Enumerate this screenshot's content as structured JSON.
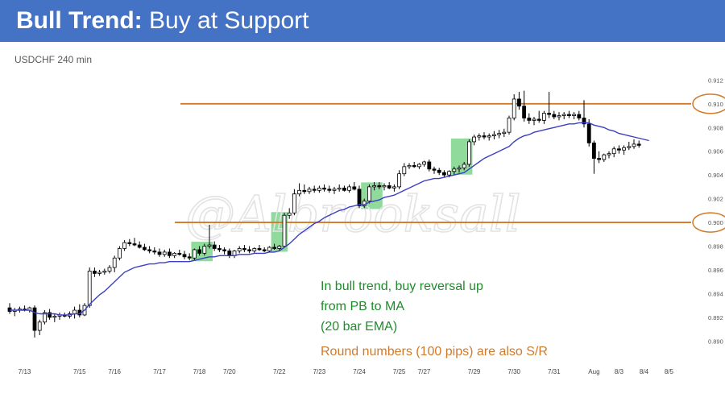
{
  "header": {
    "title_bold": "Bull Trend:",
    "title_rest": " Buy at Support",
    "background_color": "#4472c4"
  },
  "chart_label": "USDCHF 240 min",
  "annotations": {
    "green_lines": [
      "In bull trend, buy reversal up",
      "from PB to MA",
      "(20 bar EMA)"
    ],
    "orange_line": "Round numbers (100 pips) are also S/R",
    "green_color": "#1e8c2b",
    "orange_color": "#d07a2a"
  },
  "watermark": "@Albrooksall",
  "chart_data": {
    "type": "candlestick",
    "ylim": [
      0.8888,
      0.9125
    ],
    "y_ticks": [
      "0.912",
      "0.910",
      "0.908",
      "0.906",
      "0.904",
      "0.902",
      "0.900",
      "0.898",
      "0.896",
      "0.894",
      "0.892",
      "0.890"
    ],
    "y_tick_values": [
      0.912,
      0.91,
      0.908,
      0.906,
      0.904,
      0.902,
      0.9,
      0.898,
      0.896,
      0.894,
      0.892,
      0.89
    ],
    "x_ticks": [
      "7/13",
      "7/15",
      "7/16",
      "7/17",
      "7/18",
      "7/20",
      "7/22",
      "7/23",
      "7/24",
      "7/25",
      "7/27",
      "7/29",
      "7/30",
      "7/31",
      "Aug",
      "8/3",
      "8/4",
      "8/5"
    ],
    "x_tick_bars": [
      3,
      14,
      21,
      30,
      38,
      44,
      54,
      62,
      70,
      78,
      83,
      93,
      101,
      109,
      117,
      122,
      127,
      132
    ],
    "candles": [
      [
        0.8928,
        0.8932,
        0.8923,
        0.8925
      ],
      [
        0.8925,
        0.8928,
        0.8921,
        0.8926
      ],
      [
        0.8926,
        0.8929,
        0.8924,
        0.8927
      ],
      [
        0.8927,
        0.893,
        0.8925,
        0.8926
      ],
      [
        0.8926,
        0.8929,
        0.8924,
        0.8928
      ],
      [
        0.8928,
        0.893,
        0.8903,
        0.8909
      ],
      [
        0.8909,
        0.8918,
        0.8905,
        0.8916
      ],
      [
        0.8916,
        0.8926,
        0.8914,
        0.8924
      ],
      [
        0.8924,
        0.8927,
        0.8918,
        0.892
      ],
      [
        0.892,
        0.8923,
        0.8916,
        0.8921
      ],
      [
        0.8921,
        0.8924,
        0.8918,
        0.8922
      ],
      [
        0.8922,
        0.8924,
        0.892,
        0.8921
      ],
      [
        0.8921,
        0.8925,
        0.8919,
        0.8923
      ],
      [
        0.8923,
        0.8929,
        0.8919,
        0.8926
      ],
      [
        0.8926,
        0.8931,
        0.892,
        0.8922
      ],
      [
        0.8922,
        0.8932,
        0.8921,
        0.893
      ],
      [
        0.893,
        0.8962,
        0.8928,
        0.8959
      ],
      [
        0.8959,
        0.8962,
        0.8954,
        0.8957
      ],
      [
        0.8957,
        0.896,
        0.8955,
        0.8958
      ],
      [
        0.8958,
        0.8961,
        0.8956,
        0.8959
      ],
      [
        0.8959,
        0.8964,
        0.8957,
        0.8962
      ],
      [
        0.8962,
        0.8972,
        0.8958,
        0.897
      ],
      [
        0.897,
        0.898,
        0.8968,
        0.8978
      ],
      [
        0.8978,
        0.8985,
        0.8976,
        0.8983
      ],
      [
        0.8983,
        0.8986,
        0.898,
        0.8982
      ],
      [
        0.8982,
        0.8987,
        0.898,
        0.8981
      ],
      [
        0.8981,
        0.8984,
        0.8978,
        0.8979
      ],
      [
        0.8979,
        0.8982,
        0.8976,
        0.8977
      ],
      [
        0.8977,
        0.898,
        0.8974,
        0.8976
      ],
      [
        0.8976,
        0.8979,
        0.8973,
        0.8975
      ],
      [
        0.8975,
        0.8978,
        0.8971,
        0.8973
      ],
      [
        0.8973,
        0.8977,
        0.8971,
        0.8975
      ],
      [
        0.8975,
        0.8978,
        0.897,
        0.8972
      ],
      [
        0.8972,
        0.8975,
        0.897,
        0.8974
      ],
      [
        0.8974,
        0.8977,
        0.8972,
        0.8973
      ],
      [
        0.8973,
        0.8976,
        0.8969,
        0.8971
      ],
      [
        0.8971,
        0.8974,
        0.8968,
        0.897
      ],
      [
        0.897,
        0.8978,
        0.8968,
        0.8977
      ],
      [
        0.8977,
        0.898,
        0.8972,
        0.8974
      ],
      [
        0.8974,
        0.8982,
        0.8972,
        0.898
      ],
      [
        0.898,
        0.8998,
        0.8978,
        0.8981
      ],
      [
        0.8981,
        0.8984,
        0.8976,
        0.8978
      ],
      [
        0.8978,
        0.8981,
        0.8975,
        0.8977
      ],
      [
        0.8977,
        0.8979,
        0.8973,
        0.8976
      ],
      [
        0.8976,
        0.8978,
        0.897,
        0.8972
      ],
      [
        0.8972,
        0.8977,
        0.897,
        0.8976
      ],
      [
        0.8976,
        0.898,
        0.8974,
        0.8978
      ],
      [
        0.8978,
        0.8981,
        0.8975,
        0.8977
      ],
      [
        0.8977,
        0.898,
        0.8974,
        0.8976
      ],
      [
        0.8976,
        0.8979,
        0.8974,
        0.8978
      ],
      [
        0.8978,
        0.8981,
        0.8976,
        0.8977
      ],
      [
        0.8977,
        0.8979,
        0.8975,
        0.8976
      ],
      [
        0.8976,
        0.898,
        0.8975,
        0.8979
      ],
      [
        0.8979,
        0.8982,
        0.8977,
        0.8978
      ],
      [
        0.8978,
        0.8981,
        0.8976,
        0.898
      ],
      [
        0.898,
        0.9008,
        0.8979,
        0.9006
      ],
      [
        0.9006,
        0.9012,
        0.9003,
        0.9008
      ],
      [
        0.9008,
        0.9028,
        0.9006,
        0.9024
      ],
      [
        0.9024,
        0.9033,
        0.9022,
        0.9027
      ],
      [
        0.9027,
        0.9032,
        0.9024,
        0.9026
      ],
      [
        0.9026,
        0.903,
        0.9024,
        0.9028
      ],
      [
        0.9028,
        0.9031,
        0.9025,
        0.9027
      ],
      [
        0.9027,
        0.9031,
        0.9025,
        0.9029
      ],
      [
        0.9029,
        0.9032,
        0.9026,
        0.9028
      ],
      [
        0.9028,
        0.9031,
        0.9025,
        0.9027
      ],
      [
        0.9027,
        0.903,
        0.9024,
        0.9028
      ],
      [
        0.9028,
        0.9032,
        0.9026,
        0.9029
      ],
      [
        0.9029,
        0.9031,
        0.9026,
        0.9027
      ],
      [
        0.9027,
        0.9032,
        0.9025,
        0.903
      ],
      [
        0.903,
        0.9034,
        0.9027,
        0.9028
      ],
      [
        0.9028,
        0.9031,
        0.9012,
        0.9014
      ],
      [
        0.9014,
        0.902,
        0.9012,
        0.9018
      ],
      [
        0.9018,
        0.9032,
        0.9016,
        0.903
      ],
      [
        0.903,
        0.9034,
        0.9027,
        0.9031
      ],
      [
        0.9031,
        0.9034,
        0.9028,
        0.903
      ],
      [
        0.903,
        0.9033,
        0.9027,
        0.9031
      ],
      [
        0.9031,
        0.9034,
        0.9028,
        0.9029
      ],
      [
        0.9029,
        0.9032,
        0.9026,
        0.903
      ],
      [
        0.903,
        0.9044,
        0.9028,
        0.9041
      ],
      [
        0.9041,
        0.905,
        0.9039,
        0.9047
      ],
      [
        0.9047,
        0.905,
        0.9045,
        0.9048
      ],
      [
        0.9048,
        0.9051,
        0.9046,
        0.9047
      ],
      [
        0.9047,
        0.905,
        0.9045,
        0.9049
      ],
      [
        0.9049,
        0.9052,
        0.9047,
        0.9051
      ],
      [
        0.9051,
        0.9053,
        0.9043,
        0.9045
      ],
      [
        0.9045,
        0.9047,
        0.9041,
        0.9044
      ],
      [
        0.9044,
        0.9046,
        0.904,
        0.9042
      ],
      [
        0.9042,
        0.9044,
        0.9038,
        0.904
      ],
      [
        0.904,
        0.9044,
        0.9038,
        0.9043
      ],
      [
        0.9043,
        0.9047,
        0.904,
        0.9045
      ],
      [
        0.9045,
        0.9048,
        0.9042,
        0.9046
      ],
      [
        0.9046,
        0.9051,
        0.9044,
        0.9049
      ],
      [
        0.9049,
        0.907,
        0.9047,
        0.9068
      ],
      [
        0.9068,
        0.9074,
        0.9065,
        0.9072
      ],
      [
        0.9072,
        0.9075,
        0.9069,
        0.9073
      ],
      [
        0.9073,
        0.9076,
        0.907,
        0.9072
      ],
      [
        0.9072,
        0.9075,
        0.9069,
        0.9073
      ],
      [
        0.9073,
        0.9077,
        0.907,
        0.9074
      ],
      [
        0.9074,
        0.9078,
        0.9071,
        0.9075
      ],
      [
        0.9075,
        0.9079,
        0.9072,
        0.9076
      ],
      [
        0.9076,
        0.909,
        0.9074,
        0.9088
      ],
      [
        0.9088,
        0.9108,
        0.9086,
        0.9104
      ],
      [
        0.9104,
        0.911,
        0.9095,
        0.9098
      ],
      [
        0.9098,
        0.9111,
        0.9085,
        0.9088
      ],
      [
        0.9088,
        0.9092,
        0.9083,
        0.9086
      ],
      [
        0.9086,
        0.9089,
        0.9082,
        0.9087
      ],
      [
        0.9087,
        0.9094,
        0.9084,
        0.9086
      ],
      [
        0.9086,
        0.9094,
        0.9083,
        0.9092
      ],
      [
        0.9092,
        0.911,
        0.9088,
        0.9091
      ],
      [
        0.9091,
        0.9094,
        0.9087,
        0.9089
      ],
      [
        0.9089,
        0.9093,
        0.9086,
        0.909
      ],
      [
        0.909,
        0.9093,
        0.9087,
        0.9091
      ],
      [
        0.9091,
        0.9094,
        0.9088,
        0.909
      ],
      [
        0.909,
        0.9093,
        0.9087,
        0.9091
      ],
      [
        0.9091,
        0.9094,
        0.9086,
        0.9088
      ],
      [
        0.9088,
        0.9103,
        0.908,
        0.9083
      ],
      [
        0.9083,
        0.9087,
        0.9064,
        0.9067
      ],
      [
        0.9067,
        0.9069,
        0.9041,
        0.9054
      ],
      [
        0.9054,
        0.906,
        0.905,
        0.9053
      ],
      [
        0.9053,
        0.9058,
        0.9051,
        0.9057
      ],
      [
        0.9057,
        0.906,
        0.9054,
        0.9058
      ],
      [
        0.9058,
        0.9064,
        0.9055,
        0.9062
      ],
      [
        0.9062,
        0.9065,
        0.9058,
        0.9061
      ],
      [
        0.9061,
        0.9065,
        0.9057,
        0.9063
      ],
      [
        0.9063,
        0.9068,
        0.9061,
        0.9064
      ],
      [
        0.9064,
        0.907,
        0.9062,
        0.9066
      ],
      [
        0.9066,
        0.9069,
        0.9063,
        0.9065
      ]
    ],
    "ema_20": [
      0.8926,
      0.8926,
      0.8926,
      0.8926,
      0.8926,
      0.8924,
      0.8923,
      0.8923,
      0.8923,
      0.8923,
      0.8922,
      0.8922,
      0.8922,
      0.8923,
      0.8923,
      0.8926,
      0.8931,
      0.8935,
      0.8939,
      0.8942,
      0.8946,
      0.895,
      0.8954,
      0.8958,
      0.896,
      0.8962,
      0.8963,
      0.8964,
      0.8965,
      0.8965,
      0.8966,
      0.8966,
      0.8967,
      0.8967,
      0.8967,
      0.8967,
      0.8967,
      0.8968,
      0.8969,
      0.897,
      0.8971,
      0.8971,
      0.8972,
      0.8972,
      0.8972,
      0.8972,
      0.8973,
      0.8973,
      0.8973,
      0.8974,
      0.8974,
      0.8974,
      0.8975,
      0.8975,
      0.8976,
      0.8979,
      0.8982,
      0.8986,
      0.899,
      0.8993,
      0.8996,
      0.8999,
      0.9001,
      0.9004,
      0.9006,
      0.9008,
      0.901,
      0.9011,
      0.9013,
      0.9014,
      0.9015,
      0.9015,
      0.9017,
      0.9018,
      0.9019,
      0.9021,
      0.9022,
      0.9023,
      0.9025,
      0.9027,
      0.9029,
      0.9031,
      0.9033,
      0.9035,
      0.9036,
      0.9037,
      0.9037,
      0.9038,
      0.9039,
      0.904,
      0.9041,
      0.9042,
      0.9045,
      0.9048,
      0.9051,
      0.9054,
      0.9056,
      0.9058,
      0.906,
      0.9062,
      0.9064,
      0.9068,
      0.9071,
      0.9073,
      0.9074,
      0.9076,
      0.9077,
      0.9078,
      0.9079,
      0.908,
      0.9081,
      0.9082,
      0.9083,
      0.9083,
      0.9084,
      0.9084,
      0.9084,
      0.9082,
      0.9081,
      0.908,
      0.9078,
      0.9077,
      0.9075,
      0.9074,
      0.9073,
      0.9072,
      0.9071,
      0.907,
      0.9069
    ],
    "highlighted_bars": [
      [
        37,
        40
      ],
      [
        53,
        55
      ],
      [
        71,
        74
      ],
      [
        89,
        92
      ]
    ],
    "horizontal_lines": [
      {
        "value": 0.91,
        "circled_label": "0.910"
      },
      {
        "value": 0.9,
        "circled_label": "0.900"
      }
    ],
    "colors": {
      "candle": "#000000",
      "bull_body": "#ffffff",
      "ema": "#3a3fc4",
      "sr_line": "#d07a2a",
      "highlight": "#7cd48a"
    }
  }
}
